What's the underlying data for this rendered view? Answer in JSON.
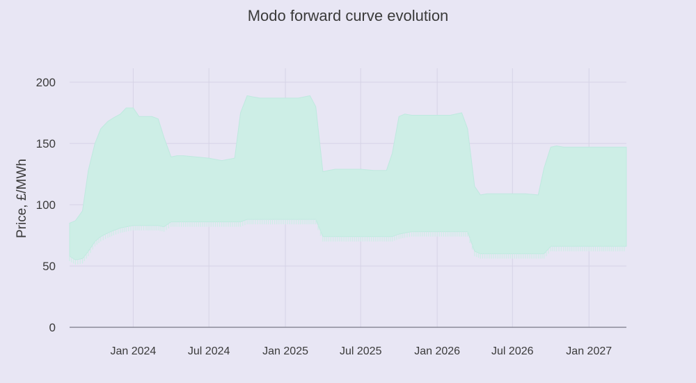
{
  "chart_data": {
    "type": "area",
    "title": "Modo forward curve evolution",
    "xlabel": "",
    "ylabel": "Price, £/MWh",
    "ylim": [
      0,
      200
    ],
    "xlim": [
      "2023-08-01",
      "2027-04-01"
    ],
    "y_ticks": [
      "0",
      "50",
      "100",
      "150",
      "200"
    ],
    "x_ticks": [
      {
        "date": "2024-01-01",
        "label": "Jan 2024"
      },
      {
        "date": "2024-07-01",
        "label": "Jul 2024"
      },
      {
        "date": "2025-01-01",
        "label": "Jan 2025"
      },
      {
        "date": "2025-07-01",
        "label": "Jul 2025"
      },
      {
        "date": "2026-01-01",
        "label": "Jan 2026"
      },
      {
        "date": "2026-07-01",
        "label": "Jul 2026"
      },
      {
        "date": "2027-01-01",
        "label": "Jan 2027"
      }
    ],
    "grid": true,
    "legend": "none",
    "colors": {
      "band": "#cdeee6",
      "band_stroke": "#bfe9df",
      "grid": "#d6d3e6",
      "axis": "#8a8a98",
      "text": "#3a3a3a"
    },
    "series": [
      {
        "x": [
          "2023-08-01",
          "2023-08-15",
          "2023-09-01",
          "2023-09-15",
          "2023-10-01",
          "2023-10-15",
          "2023-11-01",
          "2023-11-15",
          "2023-12-01",
          "2023-12-15",
          "2024-01-01",
          "2024-01-15",
          "2024-02-01",
          "2024-02-15",
          "2024-03-01",
          "2024-03-15",
          "2024-04-01",
          "2024-04-15",
          "2024-05-01",
          "2024-06-01",
          "2024-07-01",
          "2024-08-01",
          "2024-09-01",
          "2024-09-15",
          "2024-10-01",
          "2024-10-15",
          "2024-11-01",
          "2024-12-01",
          "2025-01-01",
          "2025-02-01",
          "2025-03-01",
          "2025-03-15",
          "2025-04-01",
          "2025-04-15",
          "2025-05-01",
          "2025-06-01",
          "2025-07-01",
          "2025-08-01",
          "2025-09-01",
          "2025-09-15",
          "2025-10-01",
          "2025-10-15",
          "2025-11-01",
          "2025-12-01",
          "2026-01-01",
          "2026-02-01",
          "2026-03-01",
          "2026-03-15",
          "2026-04-01",
          "2026-04-15",
          "2026-05-01",
          "2026-06-01",
          "2026-07-01",
          "2026-08-01",
          "2026-09-01",
          "2026-09-15",
          "2026-10-01",
          "2026-10-15",
          "2026-11-01",
          "2026-12-01",
          "2027-01-01",
          "2027-02-01",
          "2027-03-01",
          "2027-04-01"
        ],
        "low": [
          58,
          55,
          56,
          62,
          70,
          74,
          77,
          79,
          81,
          82,
          83,
          83,
          83,
          83,
          83,
          82,
          86,
          86,
          86,
          86,
          86,
          86,
          86,
          86,
          88,
          88,
          88,
          88,
          88,
          88,
          88,
          88,
          74,
          74,
          74,
          74,
          74,
          74,
          74,
          74,
          76,
          77,
          78,
          78,
          78,
          78,
          78,
          78,
          62,
          60,
          60,
          60,
          60,
          60,
          60,
          60,
          66,
          66,
          66,
          66,
          66,
          66,
          66,
          66
        ],
        "high": [
          85,
          87,
          95,
          128,
          150,
          162,
          168,
          171,
          174,
          179,
          179,
          172,
          172,
          172,
          170,
          155,
          139,
          140,
          140,
          139,
          138,
          136,
          138,
          175,
          189,
          188,
          187,
          187,
          187,
          187,
          189,
          180,
          127,
          128,
          129,
          129,
          129,
          128,
          128,
          142,
          172,
          174,
          173,
          173,
          173,
          173,
          175,
          162,
          115,
          108,
          109,
          109,
          109,
          109,
          108,
          130,
          147,
          148,
          147,
          147,
          147,
          147,
          147,
          147
        ]
      }
    ]
  }
}
